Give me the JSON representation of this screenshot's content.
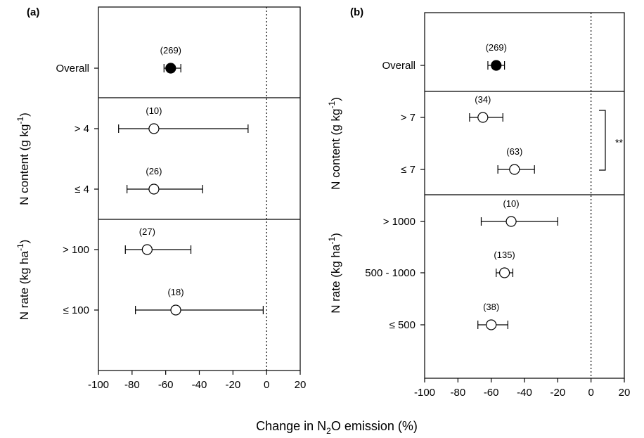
{
  "colors": {
    "axis": "#000000",
    "filled_marker": "#000000",
    "open_marker": "#ffffff"
  },
  "xlabel": {
    "prefix": "Change in N",
    "sub": "2",
    "suffix": "O emission (%)"
  },
  "chart_data": [
    {
      "type": "forest",
      "panel_label": "(a)",
      "xlim": [
        -100,
        20
      ],
      "xticks": [
        "-100",
        "-80",
        "-60",
        "-40",
        "-20",
        "0",
        "20"
      ],
      "reference_line": 0,
      "groups": [
        {
          "label_prefix": "N content (g kg",
          "label_sup": "-1",
          "label_suffix": ")",
          "from": 1,
          "to": 2
        },
        {
          "label_prefix": "N rate (kg ha",
          "label_sup": "-1",
          "label_suffix": ")",
          "from": 3,
          "to": 4
        }
      ],
      "rows": [
        {
          "label": "Overall",
          "n": "(269)",
          "mean": -57,
          "low": -61,
          "high": -51,
          "filled": true
        },
        {
          "label": "> 4",
          "n": "(10)",
          "mean": -67,
          "low": -88,
          "high": -11,
          "filled": false
        },
        {
          "label": "≤ 4",
          "n": "(26)",
          "mean": -67,
          "low": -83,
          "high": -38,
          "filled": false
        },
        {
          "label": "> 100",
          "n": "(27)",
          "mean": -71,
          "low": -84,
          "high": -45,
          "filled": false
        },
        {
          "label": "≤ 100",
          "n": "(18)",
          "mean": -54,
          "low": -78,
          "high": -2,
          "filled": false
        }
      ]
    },
    {
      "type": "forest",
      "panel_label": "(b)",
      "xlim": [
        -100,
        20
      ],
      "xticks": [
        "-100",
        "-80",
        "-60",
        "-40",
        "-20",
        "0",
        "20"
      ],
      "reference_line": 0,
      "groups": [
        {
          "label_prefix": "N content (g kg",
          "label_sup": "-1",
          "label_suffix": ")",
          "from": 1,
          "to": 2
        },
        {
          "label_prefix": "N rate (kg ha",
          "label_sup": "-1",
          "label_suffix": ")",
          "from": 3,
          "to": 5
        }
      ],
      "rows": [
        {
          "label": "Overall",
          "n": "(269)",
          "mean": -57,
          "low": -62,
          "high": -52,
          "filled": true
        },
        {
          "label": "> 7",
          "n": "(34)",
          "mean": -65,
          "low": -73,
          "high": -53,
          "filled": false
        },
        {
          "label": "≤ 7",
          "n": "(63)",
          "mean": -46,
          "low": -56,
          "high": -34,
          "filled": false
        },
        {
          "label": "> 1000",
          "n": "(10)",
          "mean": -48,
          "low": -66,
          "high": -20,
          "filled": false
        },
        {
          "label": "500 - 1000",
          "n": "(135)",
          "mean": -52,
          "low": -57,
          "high": -47,
          "filled": false
        },
        {
          "label": "≤ 500",
          "n": "(38)",
          "mean": -60,
          "low": -68,
          "high": -50,
          "filled": false
        }
      ],
      "significance": {
        "label": "**",
        "between": [
          1,
          2
        ]
      }
    }
  ]
}
